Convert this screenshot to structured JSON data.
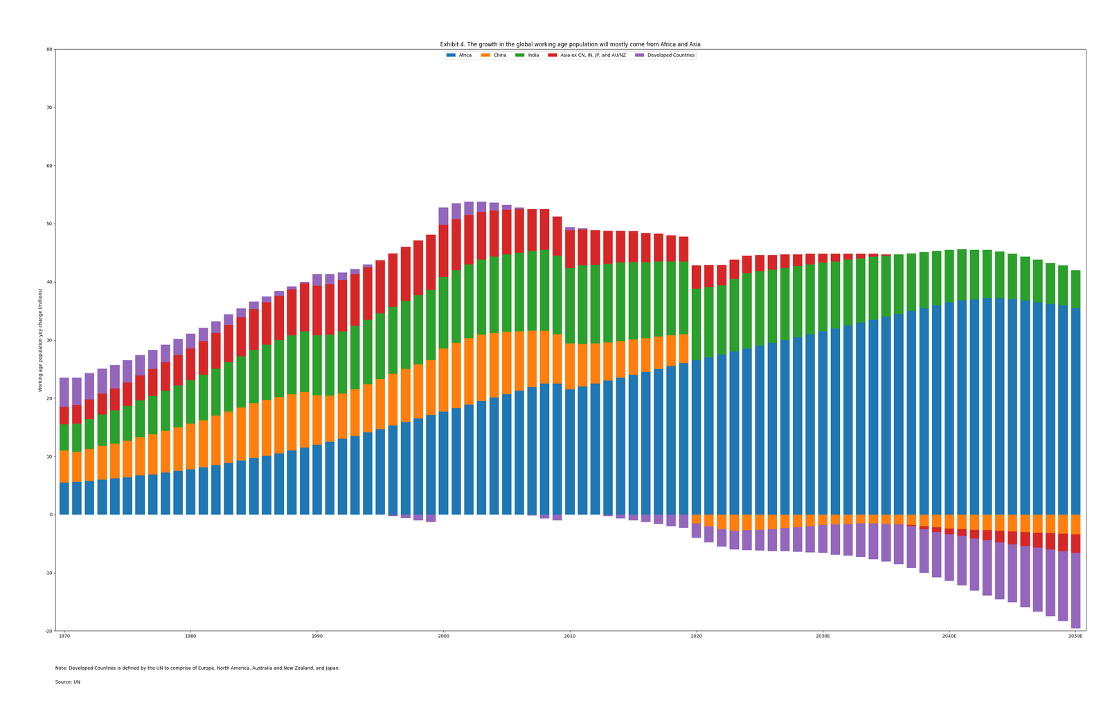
{
  "chart_data": {
    "type": "bar",
    "stacked": true,
    "title": "Exhibit 4. The growth in the global working age population will mostly come from Africa and Asia",
    "y_label": "Working age population yoy change (millions)",
    "annotations": [
      "Note: Developed Countries is defined by the UN to comprise of Europe, North America, Australia and New Zealand, and Japan.",
      "Source: UN"
    ],
    "legend": "upper center",
    "grid": false,
    "x": [
      1970,
      1971,
      1972,
      1973,
      1974,
      1975,
      1976,
      1977,
      1978,
      1979,
      1980,
      1981,
      1982,
      1983,
      1984,
      1985,
      1986,
      1987,
      1988,
      1989,
      1990,
      1991,
      1992,
      1993,
      1994,
      1995,
      1996,
      1997,
      1998,
      1999,
      2000,
      2001,
      2002,
      2003,
      2004,
      2005,
      2006,
      2007,
      2008,
      2009,
      2010,
      2011,
      2012,
      2013,
      2014,
      2015,
      2016,
      2017,
      2018,
      2019,
      2020,
      2021,
      2022,
      2023,
      2024,
      2025,
      2026,
      2027,
      2028,
      2029,
      2030,
      2031,
      2032,
      2033,
      2034,
      2035,
      2036,
      2037,
      2038,
      2039,
      2040,
      2041,
      2042,
      2043,
      2044,
      2045,
      2046,
      2047,
      2048,
      2049,
      2050
    ],
    "xlim": [
      1969.3,
      2050.8
    ],
    "xticks": [
      1970,
      1980,
      1990,
      2000,
      2010,
      2020,
      {
        "value": 2030,
        "label": "2030E"
      },
      {
        "value": 2040,
        "label": "2040E"
      },
      {
        "value": 2050,
        "label": "2050E"
      }
    ],
    "ylim": [
      -20,
      80
    ],
    "yticks": [
      -20,
      -10,
      0,
      10,
      20,
      30,
      40,
      50,
      60,
      70,
      80
    ],
    "series": [
      {
        "name": "Africa",
        "values": [
          5.5,
          5.6,
          5.8,
          6.0,
          6.2,
          6.4,
          6.7,
          6.9,
          7.2,
          7.5,
          7.8,
          8.1,
          8.5,
          8.9,
          9.3,
          9.7,
          10.1,
          10.5,
          11.0,
          11.5,
          12.0,
          12.5,
          13.0,
          13.5,
          14.1,
          14.7,
          15.3,
          15.9,
          16.5,
          17.1,
          17.7,
          18.3,
          18.9,
          19.5,
          20.1,
          20.7,
          21.3,
          21.9,
          22.5,
          22.5,
          21.5,
          22.0,
          22.5,
          23.0,
          23.5,
          24.0,
          24.5,
          25.0,
          25.5,
          26.0,
          26.5,
          27.0,
          27.5,
          28.0,
          28.5,
          29.0,
          29.5,
          30.0,
          30.5,
          31.0,
          31.5,
          32.0,
          32.5,
          33.0,
          33.5,
          34.0,
          34.5,
          35.0,
          35.5,
          36.0,
          36.5,
          36.8,
          37.0,
          37.2,
          37.2,
          37.0,
          36.8,
          36.5,
          36.2,
          36.0,
          35.5
        ]
      },
      {
        "name": "China",
        "values": [
          5.5,
          5.2,
          5.5,
          5.8,
          6.0,
          6.3,
          6.6,
          6.9,
          7.2,
          7.5,
          7.8,
          8.1,
          8.5,
          8.8,
          9.1,
          9.4,
          9.6,
          9.7,
          9.7,
          9.6,
          8.5,
          7.9,
          7.8,
          8.0,
          8.3,
          8.6,
          8.9,
          9.1,
          9.3,
          9.4,
          10.8,
          11.2,
          11.4,
          11.4,
          11.1,
          10.7,
          10.2,
          9.7,
          9.1,
          8.5,
          7.9,
          7.3,
          6.9,
          6.6,
          6.3,
          6.1,
          5.8,
          5.6,
          5.3,
          5.0,
          -1.5,
          -2.0,
          -2.5,
          -2.8,
          -2.7,
          -2.6,
          -2.5,
          -2.3,
          -2.2,
          -2.0,
          -1.8,
          -1.7,
          -1.6,
          -1.5,
          -1.5,
          -1.6,
          -1.7,
          -1.8,
          -2.0,
          -2.2,
          -2.4,
          -2.5,
          -2.6,
          -2.7,
          -2.8,
          -2.9,
          -3.0,
          -3.1,
          -3.2,
          -3.3,
          -3.4
        ]
      },
      {
        "name": "India",
        "values": [
          4.5,
          4.8,
          5.1,
          5.4,
          5.7,
          6.0,
          6.3,
          6.6,
          6.9,
          7.2,
          7.5,
          7.8,
          8.1,
          8.5,
          8.8,
          9.2,
          9.5,
          9.8,
          10.1,
          10.4,
          10.3,
          10.5,
          10.7,
          10.9,
          11.1,
          11.3,
          11.5,
          11.7,
          11.9,
          12.1,
          12.3,
          12.5,
          12.7,
          12.9,
          13.1,
          13.3,
          13.5,
          13.7,
          13.9,
          13.5,
          13.0,
          13.5,
          13.5,
          13.5,
          13.5,
          13.3,
          13.1,
          12.9,
          12.7,
          12.5,
          12.3,
          12.1,
          11.9,
          12.5,
          13.0,
          12.8,
          12.6,
          12.4,
          12.2,
          12.0,
          11.8,
          11.5,
          11.3,
          11.0,
          10.8,
          10.5,
          10.2,
          9.9,
          9.6,
          9.3,
          9.0,
          8.8,
          8.5,
          8.3,
          8.0,
          7.8,
          7.5,
          7.3,
          7.0,
          6.8,
          6.5
        ]
      },
      {
        "name": "Asia ex CN, IN, JP, and AU/NZ",
        "values": [
          3.0,
          3.2,
          3.4,
          3.6,
          3.8,
          4.0,
          4.3,
          4.6,
          4.9,
          5.2,
          5.5,
          5.8,
          6.1,
          6.4,
          6.7,
          7.0,
          7.3,
          7.6,
          7.9,
          8.2,
          8.5,
          8.7,
          8.8,
          8.9,
          9.0,
          9.1,
          9.2,
          9.3,
          9.4,
          9.5,
          9.0,
          8.8,
          8.5,
          8.2,
          8.0,
          7.7,
          7.5,
          7.2,
          7.0,
          6.7,
          6.5,
          6.2,
          6.0,
          5.7,
          5.5,
          5.3,
          5.0,
          4.8,
          4.5,
          4.3,
          4.0,
          3.8,
          3.5,
          3.3,
          3.0,
          2.8,
          2.5,
          2.3,
          2.0,
          1.8,
          1.5,
          1.3,
          1.0,
          0.8,
          0.5,
          0.2,
          0.0,
          -0.2,
          -0.5,
          -0.8,
          -1.0,
          -1.2,
          -1.5,
          -1.7,
          -2.0,
          -2.2,
          -2.4,
          -2.6,
          -2.8,
          -3.0,
          -3.2
        ]
      },
      {
        "name": "Developed Countries",
        "values": [
          5.0,
          4.7,
          4.5,
          4.3,
          4.0,
          3.8,
          3.5,
          3.3,
          3.0,
          2.8,
          2.5,
          2.3,
          2.0,
          1.8,
          1.5,
          1.3,
          1.0,
          0.8,
          0.5,
          0.3,
          2.0,
          1.7,
          1.3,
          0.9,
          0.5,
          0.0,
          -0.3,
          -0.6,
          -1.0,
          -1.3,
          3.0,
          2.7,
          2.3,
          1.8,
          1.3,
          0.8,
          0.3,
          -0.2,
          -0.7,
          -1.0,
          0.5,
          0.2,
          0.0,
          -0.3,
          -0.7,
          -1.0,
          -1.3,
          -1.6,
          -2.0,
          -2.3,
          -2.5,
          -2.8,
          -3.0,
          -3.2,
          -3.4,
          -3.6,
          -3.8,
          -4.0,
          -4.2,
          -4.5,
          -4.8,
          -5.2,
          -5.5,
          -5.8,
          -6.2,
          -6.5,
          -6.8,
          -7.2,
          -7.5,
          -7.8,
          -8.0,
          -8.5,
          -9.0,
          -9.5,
          -9.8,
          -10.0,
          -10.5,
          -11.0,
          -11.5,
          -12.0,
          -13.0
        ]
      }
    ]
  }
}
